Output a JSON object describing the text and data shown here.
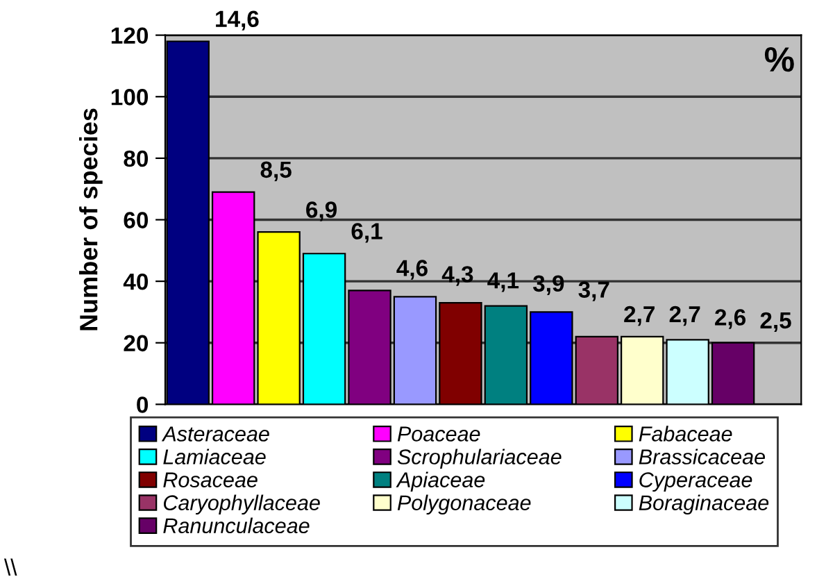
{
  "chart_data": {
    "type": "bar",
    "ylabel": "Number of species",
    "categories": [
      null,
      null,
      null,
      null,
      null,
      null,
      null,
      null,
      null,
      null,
      null,
      null,
      null,
      null
    ],
    "series": [
      {
        "name": "Asteraceae",
        "color": "#000080",
        "values": [
          118,
          null,
          null,
          null,
          null,
          null,
          null,
          null,
          null,
          null,
          null,
          null,
          null,
          null
        ]
      },
      {
        "name": "Poaceae",
        "color": "#ff00ff",
        "values": [
          null,
          69,
          null,
          null,
          null,
          null,
          null,
          null,
          null,
          null,
          null,
          null,
          null,
          null
        ]
      },
      {
        "name": "Fabaceae",
        "color": "#ffff00",
        "values": [
          null,
          null,
          56,
          null,
          null,
          null,
          null,
          null,
          null,
          null,
          null,
          null,
          null,
          null
        ]
      },
      {
        "name": "Lamiaceae",
        "color": "#00ffff",
        "values": [
          null,
          null,
          null,
          49,
          null,
          null,
          null,
          null,
          null,
          null,
          null,
          null,
          null,
          null
        ]
      },
      {
        "name": "Scrophulariaceae",
        "color": "#800080",
        "values": [
          null,
          null,
          null,
          null,
          37,
          null,
          null,
          null,
          null,
          null,
          null,
          null,
          null,
          null
        ]
      },
      {
        "name": "Brassicaceae",
        "color": "#9999ff",
        "values": [
          null,
          null,
          null,
          null,
          null,
          35,
          null,
          null,
          null,
          null,
          null,
          null,
          null,
          null
        ]
      },
      {
        "name": "Rosaceae",
        "color": "#800000",
        "values": [
          null,
          null,
          null,
          null,
          null,
          null,
          33,
          null,
          null,
          null,
          null,
          null,
          null,
          null
        ]
      },
      {
        "name": "Apiaceae",
        "color": "#008080",
        "values": [
          null,
          null,
          null,
          null,
          null,
          null,
          null,
          32,
          null,
          null,
          null,
          null,
          null,
          null
        ]
      },
      {
        "name": "Cyperaceae",
        "color": "#0000ff",
        "values": [
          null,
          null,
          null,
          null,
          null,
          null,
          null,
          null,
          30,
          null,
          null,
          null,
          null,
          null
        ]
      },
      {
        "name": "Caryophyllaceae",
        "color": "#993366",
        "values": [
          null,
          null,
          null,
          null,
          null,
          null,
          null,
          null,
          null,
          22,
          null,
          null,
          null,
          null
        ]
      },
      {
        "name": "Polygonaceae",
        "color": "#ffffcc",
        "values": [
          null,
          null,
          null,
          null,
          null,
          null,
          null,
          null,
          null,
          null,
          22,
          null,
          null,
          null
        ]
      },
      {
        "name": "Boraginaceae",
        "color": "#ccffff",
        "values": [
          null,
          null,
          null,
          null,
          null,
          null,
          null,
          null,
          null,
          null,
          null,
          21,
          null,
          null
        ]
      },
      {
        "name": "Ranunculaceae",
        "color": "#660066",
        "values": [
          null,
          null,
          null,
          null,
          null,
          null,
          null,
          null,
          null,
          null,
          null,
          null,
          20,
          null
        ]
      }
    ],
    "ylim": [
      0,
      120
    ],
    "yticks": [
      0,
      20,
      40,
      60,
      80,
      100,
      120
    ],
    "grid": "y",
    "legend": "bottom",
    "tick_labels": "y",
    "annotations": [
      "%",
      "\\\\",
      "14,6",
      "8,5",
      "6,9",
      "6,1",
      "4,6",
      "4,3",
      "4,1",
      "3,9",
      "3,7",
      "2,7",
      "2,7",
      "2,6",
      "2,5"
    ]
  }
}
